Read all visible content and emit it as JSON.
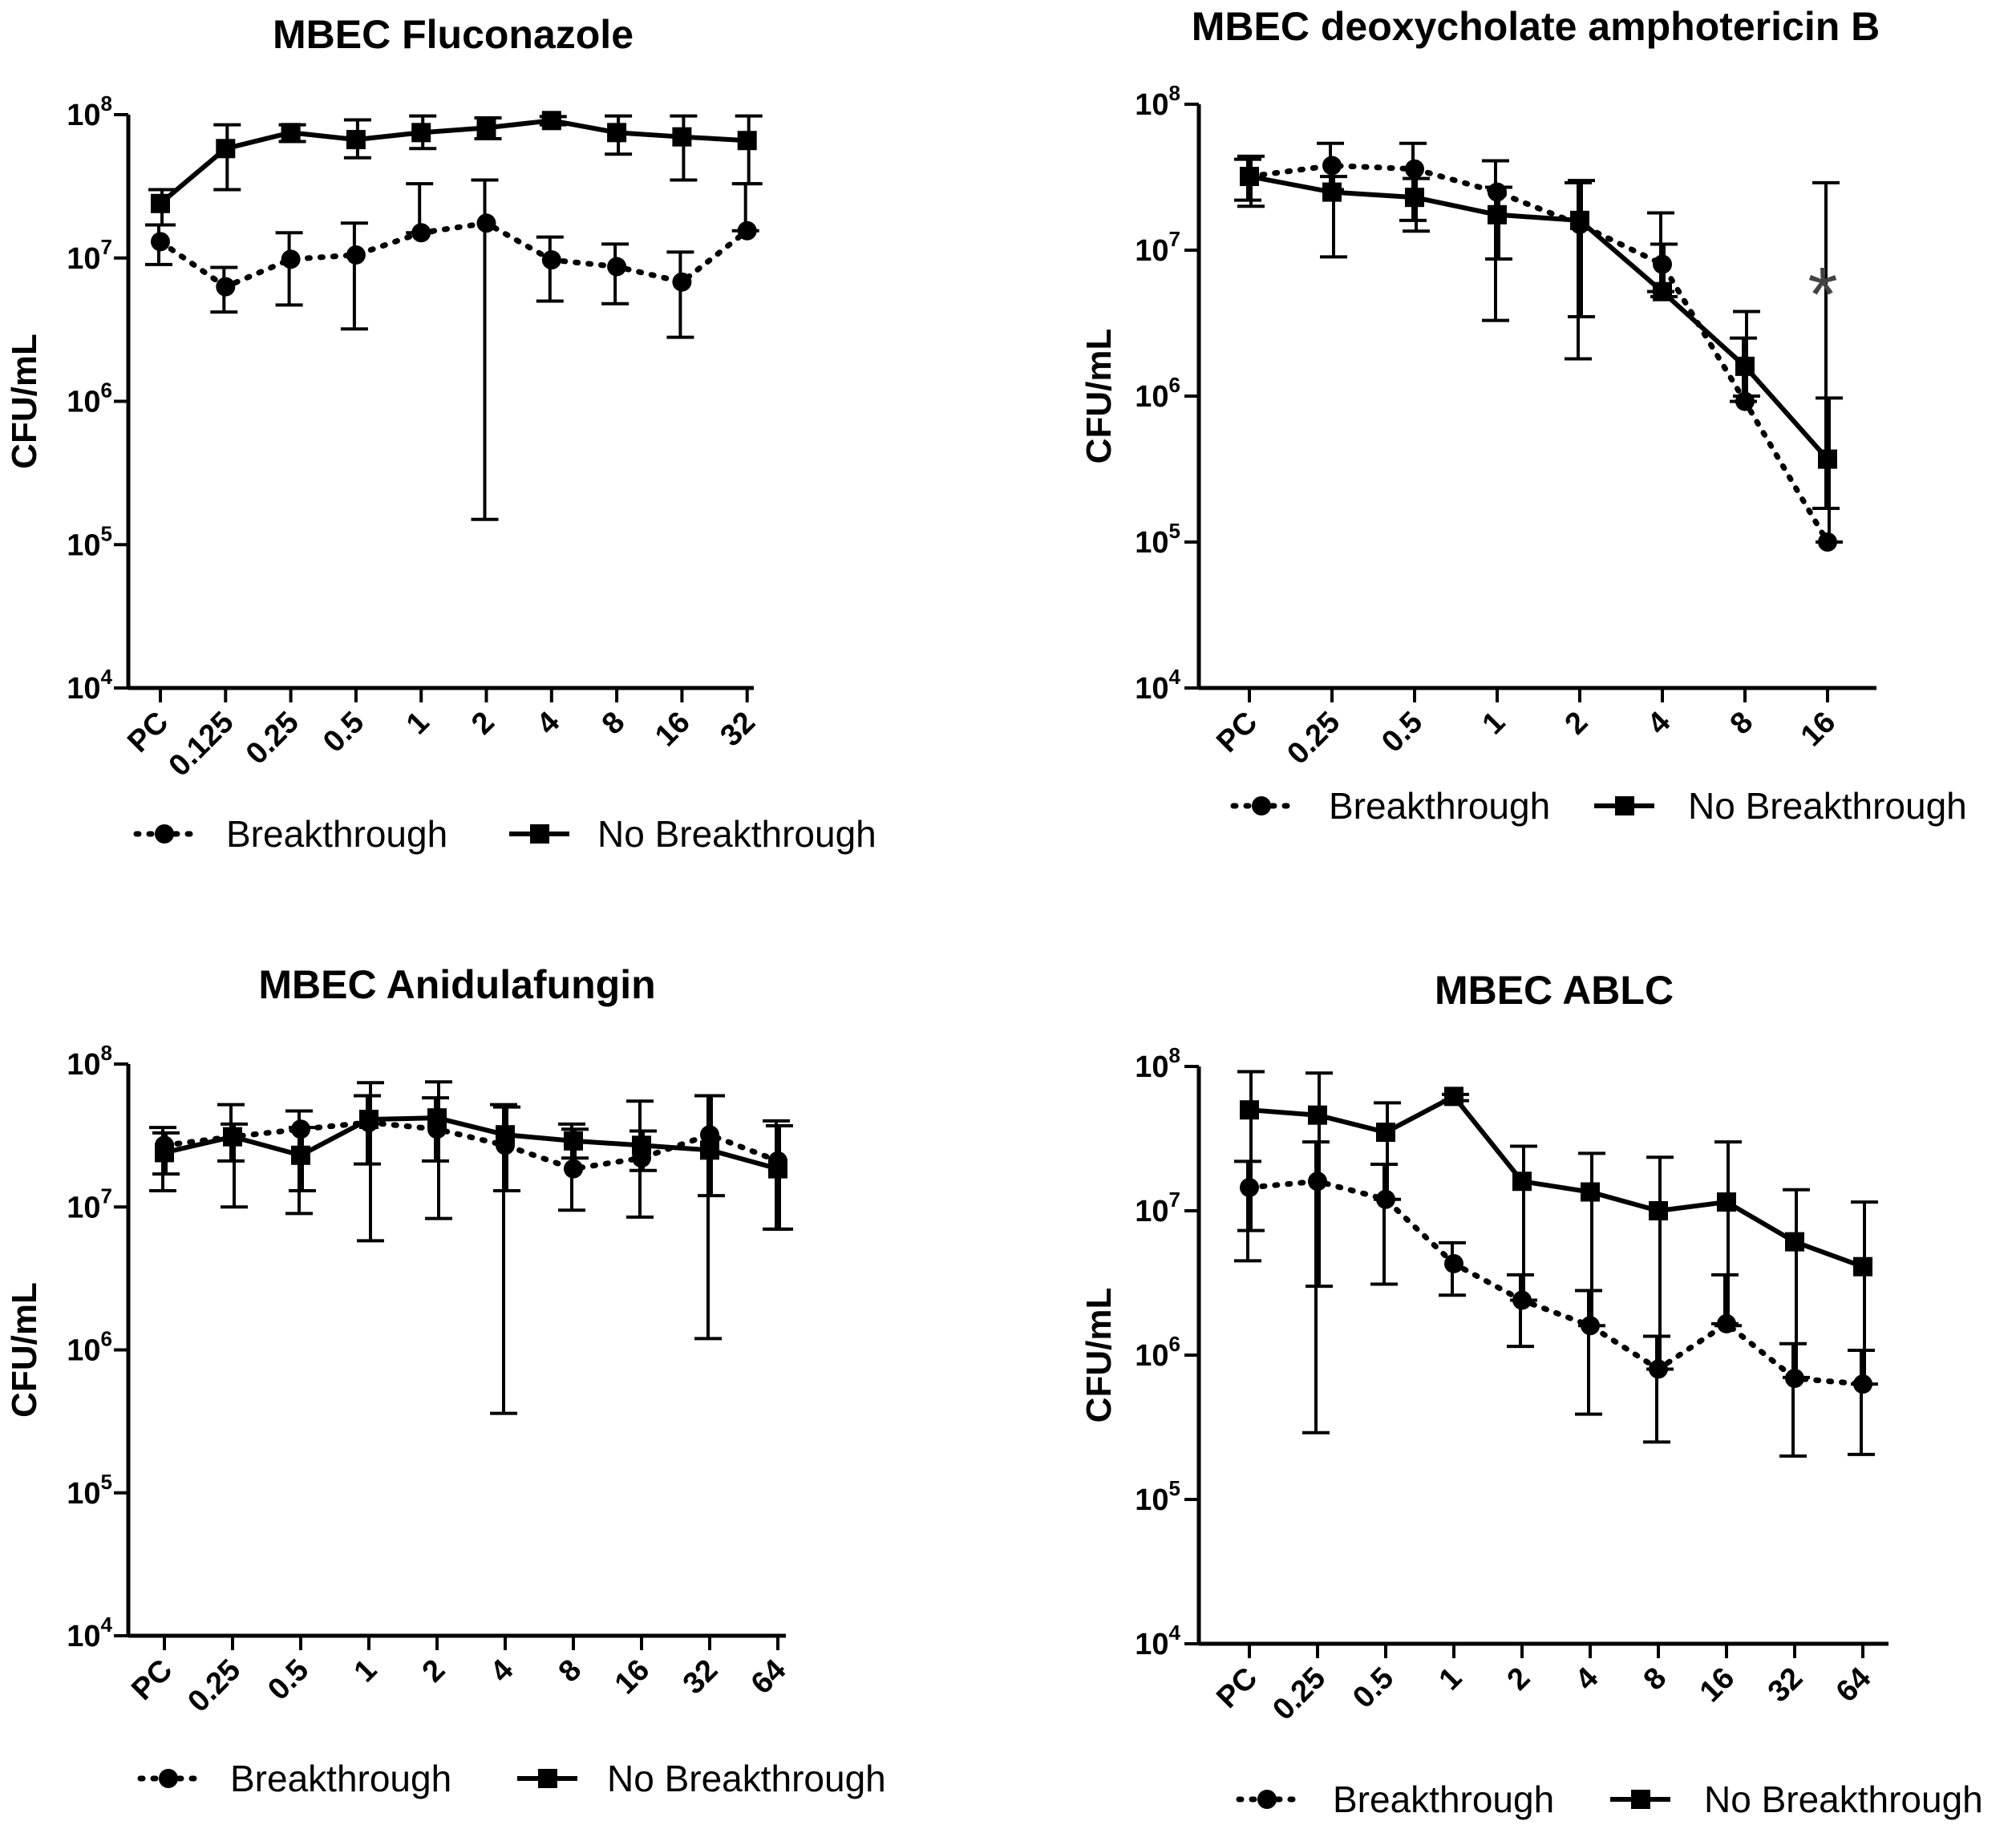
{
  "figure": {
    "series_names": [
      "Breakthrough",
      "No Breakthrough"
    ],
    "colors": {
      "line": "#000000",
      "asterisk": "#444444"
    }
  },
  "chart_data": [
    {
      "type": "line",
      "title": "MBEC Fluconazole",
      "xlabel": "",
      "ylabel": "CFU/mL",
      "yscale": "log",
      "ylim": [
        10000,
        100000000
      ],
      "yticks": [
        {
          "base": "10",
          "exp": "4"
        },
        {
          "base": "10",
          "exp": "5"
        },
        {
          "base": "10",
          "exp": "6"
        },
        {
          "base": "10",
          "exp": "7"
        },
        {
          "base": "10",
          "exp": "8"
        }
      ],
      "categories": [
        "PC",
        "0.125",
        "0.25",
        "0.5",
        "1",
        "2",
        "4",
        "8",
        "16",
        "32"
      ],
      "series": [
        {
          "name": "Breakthrough",
          "marker": "circle",
          "line": "dotted",
          "values": [
            13000000,
            6300000,
            9800000,
            10500000,
            15000000,
            17500000,
            9700000,
            8700000,
            6800000,
            15500000
          ],
          "err_low": [
            9000000,
            4200000,
            4700000,
            3200000,
            15000000,
            150000,
            5000000,
            4800000,
            2800000,
            15500000
          ],
          "err_high": [
            17000000,
            8600000,
            15000000,
            17500000,
            33000000,
            35000000,
            14000000,
            12500000,
            11000000,
            33000000
          ]
        },
        {
          "name": "No Breakthrough",
          "marker": "square",
          "line": "solid",
          "values": [
            24000000,
            58000000,
            75000000,
            67000000,
            75000000,
            81000000,
            91000000,
            75000000,
            70000000,
            66000000
          ],
          "err_low": [
            17000000,
            30000000,
            65000000,
            50000000,
            58000000,
            68000000,
            85000000,
            53000000,
            35000000,
            33000000
          ],
          "err_high": [
            30000000,
            85000000,
            85000000,
            92000000,
            98000000,
            95000000,
            97000000,
            98000000,
            98000000,
            98000000
          ]
        }
      ],
      "annotations": [],
      "legend": "bottom"
    },
    {
      "type": "line",
      "title": "MBEC deoxycholate amphotericin B",
      "xlabel": "",
      "ylabel": "CFU/mL",
      "yscale": "log",
      "ylim": [
        10000,
        100000000
      ],
      "yticks": [
        {
          "base": "10",
          "exp": "4"
        },
        {
          "base": "10",
          "exp": "5"
        },
        {
          "base": "10",
          "exp": "6"
        },
        {
          "base": "10",
          "exp": "7"
        },
        {
          "base": "10",
          "exp": "8"
        }
      ],
      "categories": [
        "PC",
        "0.25",
        "0.5",
        "1",
        "2",
        "4",
        "8",
        "16"
      ],
      "series": [
        {
          "name": "Breakthrough",
          "marker": "circle",
          "line": "dotted",
          "values": [
            32000000,
            38000000,
            36000000,
            25000000,
            15000000,
            8000000,
            920000,
            100000
          ],
          "err_low": [
            22000000,
            26000000,
            16000000,
            3300000,
            1800000,
            5200000,
            920000,
            29000000
          ],
          "err_high": [
            42000000,
            54000000,
            54000000,
            41000000,
            29000000,
            18000000,
            2500000,
            170000
          ]
        },
        {
          "name": "No Breakthrough",
          "marker": "square",
          "line": "solid",
          "values": [
            32000000,
            25000000,
            23000000,
            17500000,
            16000000,
            5200000,
            1600000,
            370000
          ],
          "err_low": [
            20000000,
            9000000,
            13500000,
            8700000,
            3500000,
            4800000,
            1000000,
            100000
          ],
          "err_high": [
            44000000,
            32000000,
            31000000,
            27000000,
            30000000,
            11000000,
            3800000,
            970000
          ]
        }
      ],
      "annotations": [
        {
          "text": "*",
          "category": "16"
        }
      ],
      "legend": "bottom"
    },
    {
      "type": "line",
      "title": "MBEC Anidulafungin",
      "xlabel": "",
      "ylabel": "CFU/mL",
      "yscale": "log",
      "ylim": [
        10000,
        100000000
      ],
      "yticks": [
        {
          "base": "10",
          "exp": "4"
        },
        {
          "base": "10",
          "exp": "5"
        },
        {
          "base": "10",
          "exp": "6"
        },
        {
          "base": "10",
          "exp": "7"
        },
        {
          "base": "10",
          "exp": "8"
        }
      ],
      "categories": [
        "PC",
        "0.25",
        "0.5",
        "1",
        "2",
        "4",
        "8",
        "16",
        "32",
        "64"
      ],
      "series": [
        {
          "name": "Breakthrough",
          "marker": "circle",
          "line": "dotted",
          "values": [
            27000000,
            31000000,
            35000000,
            39000000,
            35000000,
            27000000,
            18500000,
            22000000,
            32000000,
            21000000
          ],
          "err_low": [
            13000000,
            21000000,
            9000000,
            20000000,
            21000000,
            360000,
            9500000,
            8500000,
            1200000,
            7000000
          ],
          "err_high": [
            36000000,
            52000000,
            47000000,
            60000000,
            58000000,
            52000000,
            38000000,
            55000000,
            60000000,
            40000000
          ]
        },
        {
          "name": "No Breakthrough",
          "marker": "square",
          "line": "solid",
          "values": [
            24000000,
            31000000,
            23000000,
            41000000,
            42000000,
            32000000,
            29000000,
            27000000,
            25000000,
            18500000
          ],
          "err_low": [
            17000000,
            10000000,
            13000000,
            5800000,
            8300000,
            13000000,
            22000000,
            18000000,
            12000000,
            7000000
          ],
          "err_high": [
            33000000,
            38000000,
            36000000,
            74000000,
            75000000,
            50000000,
            35000000,
            34000000,
            60000000,
            37000000
          ]
        }
      ],
      "annotations": [],
      "legend": "bottom"
    },
    {
      "type": "line",
      "title": "MBEC ABLC",
      "xlabel": "",
      "ylabel": "CFU/mL",
      "yscale": "log",
      "ylim": [
        10000,
        100000000
      ],
      "yticks": [
        {
          "base": "10",
          "exp": "4"
        },
        {
          "base": "10",
          "exp": "5"
        },
        {
          "base": "10",
          "exp": "6"
        },
        {
          "base": "10",
          "exp": "7"
        },
        {
          "base": "10",
          "exp": "8"
        }
      ],
      "categories": [
        "PC",
        "0.25",
        "0.5",
        "1",
        "2",
        "4",
        "8",
        "16",
        "32",
        "64"
      ],
      "series": [
        {
          "name": "Breakthrough",
          "marker": "circle",
          "line": "dotted",
          "values": [
            14500000,
            16000000,
            12000000,
            4300000,
            2400000,
            1600000,
            800000,
            1650000,
            690000,
            630000
          ],
          "err_low": [
            4500000,
            290000,
            3100000,
            2600000,
            1150000,
            390000,
            250000,
            1650000,
            200000,
            205000
          ],
          "err_high": [
            22000000,
            30000000,
            21000000,
            6000000,
            3600000,
            2800000,
            1350000,
            3600000,
            1200000,
            1080000
          ]
        },
        {
          "name": "No Breakthrough",
          "marker": "square",
          "line": "solid",
          "values": [
            50000000,
            46000000,
            35000000,
            62000000,
            16000000,
            13500000,
            10000000,
            11500000,
            6100000,
            4100000
          ],
          "err_low": [
            7300000,
            3000000,
            12000000,
            58000000,
            2400000,
            1600000,
            800000,
            1600000,
            700000,
            630000
          ],
          "err_high": [
            92000000,
            90000000,
            56000000,
            64000000,
            28000000,
            25000000,
            23500000,
            30000000,
            14000000,
            11500000
          ]
        }
      ],
      "annotations": [],
      "legend": "bottom"
    }
  ]
}
